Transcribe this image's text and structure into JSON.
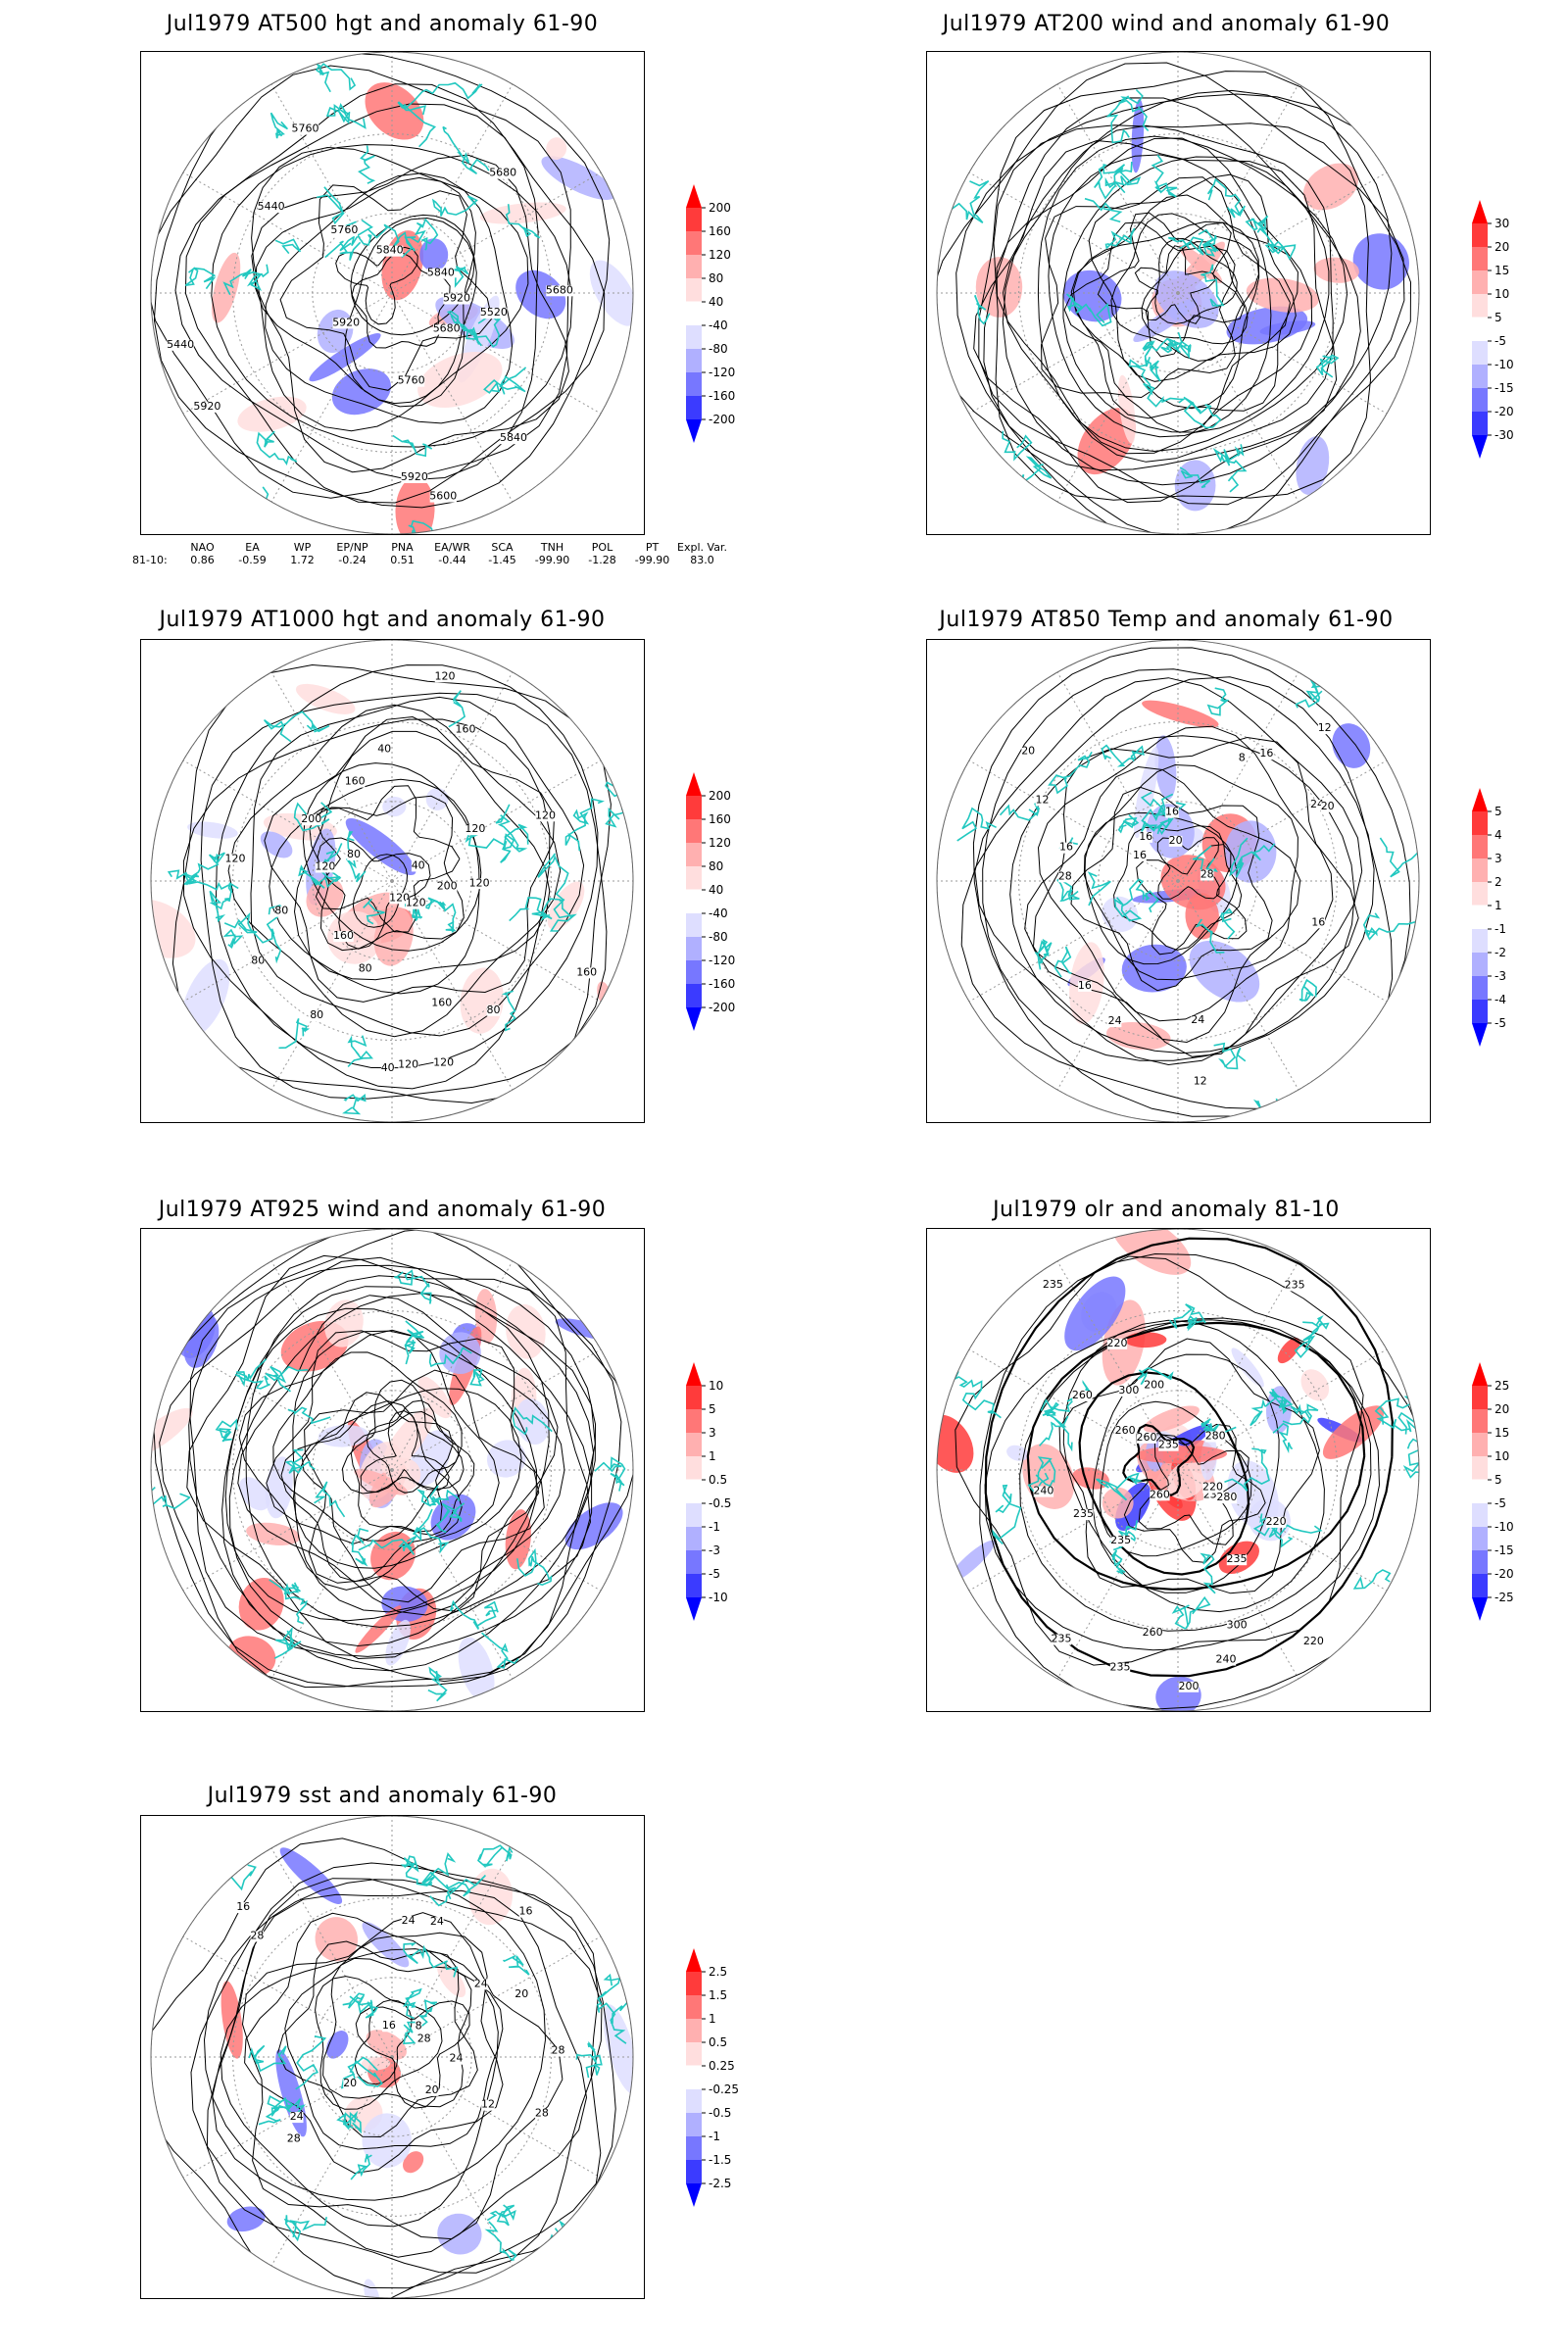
{
  "panels": [
    {
      "id": "p1",
      "title": "Jul1979 AT500 hgt and anomaly 61-90",
      "contour_labels": [
        "5840",
        "5760",
        "5680",
        "5840",
        "5760",
        "5680",
        "5920",
        "5920",
        "5440",
        "5440",
        "5520",
        "5600",
        "5680",
        "5760",
        "5840",
        "5920",
        "5920"
      ],
      "colorbar": {
        "labels": [
          "200",
          "160",
          "120",
          "80",
          "40",
          "-40",
          "-80",
          "-120",
          "-160",
          "-200"
        ],
        "colors": [
          "#ff0000",
          "#ff3b3b",
          "#ff7777",
          "#ffb0b0",
          "#ffdede",
          "#ffffff",
          "#dedeff",
          "#b0b0ff",
          "#7777ff",
          "#3b3bff",
          "#0000ff"
        ]
      }
    },
    {
      "id": "p2",
      "title": "Jul1979 AT200 wind and anomaly 61-90",
      "contour_labels": [],
      "colorbar": {
        "labels": [
          "30",
          "20",
          "15",
          "10",
          "5",
          "-5",
          "-10",
          "-15",
          "-20",
          "-30"
        ],
        "colors": [
          "#ff0000",
          "#ff3b3b",
          "#ff7777",
          "#ffb0b0",
          "#ffdede",
          "#ffffff",
          "#dedeff",
          "#b0b0ff",
          "#7777ff",
          "#3b3bff",
          "#0000ff"
        ]
      }
    },
    {
      "id": "p3",
      "title": "Jul1979 AT1000 hgt and anomaly 61-90",
      "contour_labels": [
        "120",
        "160",
        "160",
        "120",
        "200",
        "160",
        "120",
        "80",
        "40",
        "40",
        "120",
        "80",
        "120",
        "160",
        "120",
        "80",
        "80",
        "200",
        "160",
        "120",
        "80",
        "120",
        "80",
        "120",
        "120",
        "40"
      ],
      "colorbar": {
        "labels": [
          "200",
          "160",
          "120",
          "80",
          "40",
          "-40",
          "-80",
          "-120",
          "-160",
          "-200"
        ],
        "colors": [
          "#ff0000",
          "#ff3b3b",
          "#ff7777",
          "#ffb0b0",
          "#ffdede",
          "#ffffff",
          "#dedeff",
          "#b0b0ff",
          "#7777ff",
          "#3b3bff",
          "#0000ff"
        ]
      }
    },
    {
      "id": "p4",
      "title": "Jul1979 AT850 Temp and anomaly 61-90",
      "contour_labels": [
        "16",
        "12",
        "12",
        "16",
        "24",
        "28",
        "20",
        "16",
        "16",
        "8",
        "12",
        "16",
        "20",
        "28",
        "24",
        "24",
        "16",
        "20",
        "16"
      ],
      "colorbar": {
        "labels": [
          "5",
          "4",
          "3",
          "2",
          "1",
          "-1",
          "-2",
          "-3",
          "-4",
          "-5"
        ],
        "colors": [
          "#ff0000",
          "#ff3b3b",
          "#ff7777",
          "#ffb0b0",
          "#ffdede",
          "#ffffff",
          "#dedeff",
          "#b0b0ff",
          "#7777ff",
          "#3b3bff",
          "#0000ff"
        ]
      }
    },
    {
      "id": "p5",
      "title": "Jul1979 AT925 wind and anomaly 61-90",
      "contour_labels": [],
      "colorbar": {
        "labels": [
          "10",
          "5",
          "3",
          "1",
          "0.5",
          "-0.5",
          "-1",
          "-3",
          "-5",
          "-10"
        ],
        "colors": [
          "#ff0000",
          "#ff3b3b",
          "#ff7777",
          "#ffb0b0",
          "#ffdede",
          "#ffffff",
          "#dedeff",
          "#b0b0ff",
          "#7777ff",
          "#3b3bff",
          "#0000ff"
        ]
      }
    },
    {
      "id": "p6",
      "title": "Jul1979 olr and anomaly 81-10",
      "contour_labels": [
        "280",
        "260",
        "235",
        "260",
        "235",
        "220",
        "235",
        "240",
        "260",
        "235",
        "220",
        "300",
        "240",
        "235",
        "220",
        "200",
        "235",
        "260",
        "220",
        "200",
        "235",
        "300",
        "260",
        "280",
        "235",
        "235"
      ],
      "colorbar": {
        "labels": [
          "25",
          "20",
          "15",
          "10",
          "5",
          "-5",
          "-10",
          "-15",
          "-20",
          "-25"
        ],
        "colors": [
          "#ff0000",
          "#ff3b3b",
          "#ff7777",
          "#ffb0b0",
          "#ffdede",
          "#ffffff",
          "#dedeff",
          "#b0b0ff",
          "#7777ff",
          "#3b3bff",
          "#0000ff"
        ]
      }
    },
    {
      "id": "p7",
      "title": "Jul1979 sst and anomaly 61-90",
      "contour_labels": [
        "28",
        "28",
        "24",
        "20",
        "16",
        "24",
        "20",
        "16",
        "24",
        "28",
        "8",
        "12",
        "16",
        "20",
        "24",
        "28",
        "24",
        "28"
      ],
      "colorbar": {
        "labels": [
          "2.5",
          "1.5",
          "1",
          "0.5",
          "0.25",
          "-0.25",
          "-0.5",
          "-1",
          "-1.5",
          "-2.5"
        ],
        "colors": [
          "#ff0000",
          "#ff3b3b",
          "#ff7777",
          "#ffb0b0",
          "#ffdede",
          "#ffffff",
          "#dedeff",
          "#b0b0ff",
          "#7777ff",
          "#3b3bff",
          "#0000ff"
        ]
      }
    }
  ],
  "index_table": {
    "headers": [
      "",
      "NAO",
      "EA",
      "WP",
      "EP/NP",
      "PNA",
      "EA/WR",
      "SCA",
      "TNH",
      "POL",
      "PT",
      "Expl. Var."
    ],
    "row": [
      "81-10:",
      "0.86",
      "-0.59",
      "1.72",
      "-0.24",
      "0.51",
      "-0.44",
      "-1.45",
      "-99.90",
      "-1.28",
      "-99.90",
      "83.0"
    ]
  },
  "colors": {
    "coast": "#22c8c0",
    "contour": "#000000",
    "grid": "#9a9a9a"
  }
}
